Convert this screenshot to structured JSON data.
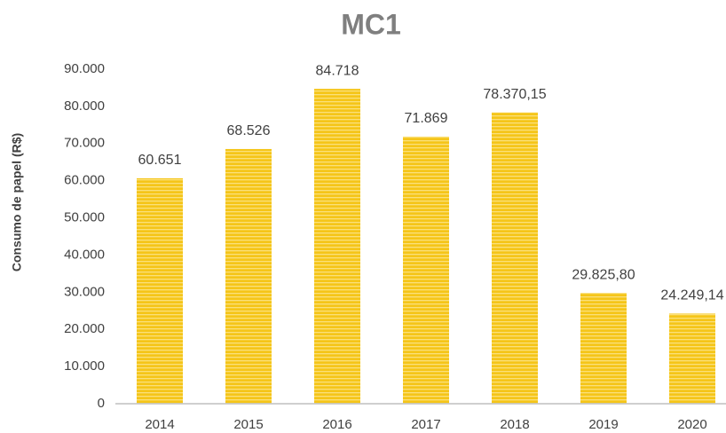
{
  "chart_data": {
    "type": "bar",
    "title": "MC1",
    "y_label": "Consumo de papel (R$)",
    "categories": [
      "2014",
      "2015",
      "2016",
      "2017",
      "2018",
      "2019",
      "2020"
    ],
    "values": [
      60651,
      68526,
      84718,
      71869,
      78370.15,
      29825.8,
      24249.14
    ],
    "value_labels": [
      "60.651",
      "68.526",
      "84.718",
      "71.869",
      "78.370,15",
      "29.825,80",
      "24.249,14"
    ],
    "color": "#f5c518",
    "ylim": [
      0,
      90000
    ],
    "yticks": [
      0,
      {
        "value": 10000,
        "label": "10.000"
      },
      {
        "value": 20000,
        "label": "20.000"
      },
      {
        "value": 30000,
        "label": "30.000"
      },
      {
        "value": 40000,
        "label": "40.000"
      },
      {
        "value": 50000,
        "label": "50.000"
      },
      {
        "value": 60000,
        "label": "60.000"
      },
      {
        "value": 70000,
        "label": "70.000"
      },
      {
        "value": 80000,
        "label": "80.000"
      },
      {
        "value": 90000,
        "label": "90.000"
      }
    ],
    "grid": false
  }
}
